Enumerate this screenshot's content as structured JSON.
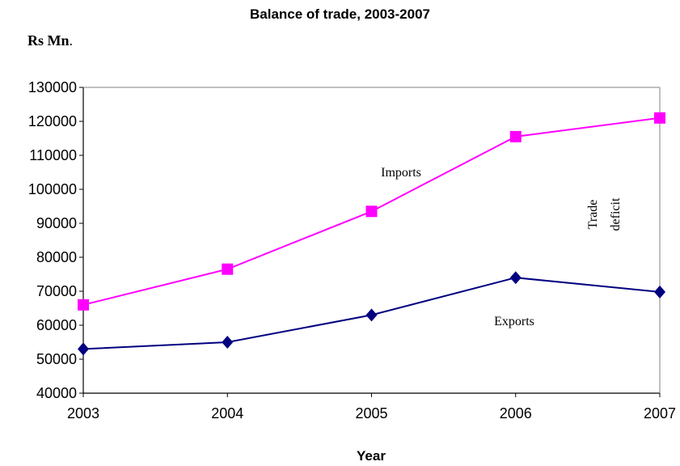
{
  "chart_data": {
    "type": "line",
    "title": "Balance of trade, 2003-2007",
    "ylabel_bold": "Rs Mn",
    "ylabel_suffix": ".",
    "xlabel": "Year",
    "x": [
      "2003",
      "2004",
      "2005",
      "2006",
      "2007"
    ],
    "ylim": [
      40000,
      130000
    ],
    "yticks": [
      40000,
      50000,
      60000,
      70000,
      80000,
      90000,
      100000,
      110000,
      120000,
      130000
    ],
    "grid": false,
    "series": [
      {
        "name": "Imports",
        "color": "#ff00ff",
        "marker": "square",
        "values": [
          66000,
          76500,
          93500,
          115500,
          121000
        ]
      },
      {
        "name": "Exports",
        "color": "#000080",
        "marker": "diamond",
        "values": [
          53000,
          55000,
          63000,
          74000,
          69800
        ]
      }
    ],
    "annotations": {
      "imports": "Imports",
      "exports": "Exports",
      "deficit_line1": "Trade",
      "deficit_line2": "deficit"
    }
  }
}
